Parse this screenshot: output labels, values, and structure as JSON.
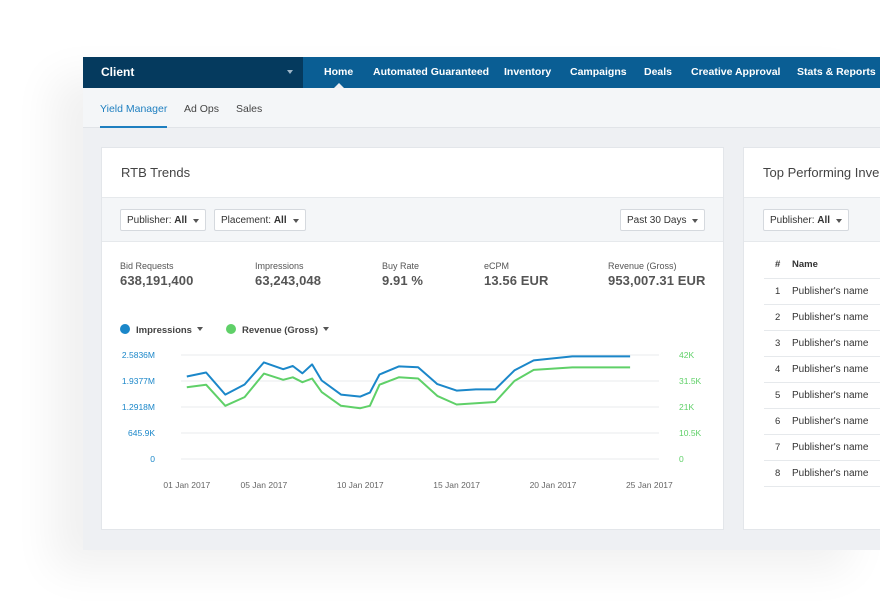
{
  "nav": {
    "client_label": "Client",
    "items": [
      "Home",
      "Automated Guaranteed",
      "Inventory",
      "Campaigns",
      "Deals",
      "Creative Approval",
      "Stats & Reports"
    ],
    "active": "Home"
  },
  "subnav": {
    "items": [
      "Yield Manager",
      "Ad Ops",
      "Sales"
    ],
    "active": "Yield Manager"
  },
  "rtb": {
    "title": "RTB Trends",
    "filters": {
      "publisher_label": "Publisher:",
      "publisher_value": "All",
      "placement_label": "Placement:",
      "placement_value": "All",
      "range": "Past 30 Days"
    },
    "kpis": [
      {
        "label": "Bid Requests",
        "value": "638,191,400"
      },
      {
        "label": "Impressions",
        "value": "63,243,048"
      },
      {
        "label": "Buy Rate",
        "value": "9.91 %"
      },
      {
        "label": "eCPM",
        "value": "13.56 EUR"
      },
      {
        "label": "Revenue (Gross)",
        "value": "953,007.31 EUR"
      }
    ],
    "legend": {
      "impressions": "Impressions",
      "revenue": "Revenue (Gross)"
    }
  },
  "colors": {
    "impressions": "#1b87c9",
    "revenue": "#5fd068",
    "nav": "#0a5e94",
    "client": "#053a5e",
    "accent": "#1e7fc0"
  },
  "chart_data": {
    "type": "line",
    "x_tick_labels": [
      "01 Jan 2017",
      "05 Jan 2017",
      "10 Jan 2017",
      "15 Jan 2017",
      "20 Jan 2017",
      "25 Jan 2017"
    ],
    "x_tick_positions": [
      1,
      5,
      10,
      15,
      20,
      25
    ],
    "y_left": {
      "ticks": [
        "0",
        "645.9K",
        "1.2918M",
        "1.9377M",
        "2.5836M"
      ],
      "ylim": [
        0,
        2583600
      ]
    },
    "y_right": {
      "ticks": [
        "0",
        "10.5K",
        "21K",
        "31.5K",
        "42K"
      ],
      "ylim": [
        0,
        42000
      ]
    },
    "x": [
      1,
      2,
      3,
      4,
      5,
      6,
      6.5,
      7,
      7.5,
      8,
      9,
      10,
      10.5,
      11,
      12,
      13,
      14,
      15,
      16,
      17,
      18,
      19,
      20,
      21,
      22,
      23,
      24
    ],
    "series": [
      {
        "name": "Impressions",
        "axis": "left",
        "values": [
          2050000,
          2150000,
          1600000,
          1850000,
          2400000,
          2230000,
          2310000,
          2130000,
          2350000,
          1950000,
          1600000,
          1550000,
          1650000,
          2100000,
          2300000,
          2280000,
          1860000,
          1700000,
          1730000,
          1730000,
          2200000,
          2450000,
          2500000,
          2550000,
          2550000,
          2550000,
          2550000
        ]
      },
      {
        "name": "Revenue (Gross)",
        "axis": "right",
        "values": [
          29000,
          30000,
          21500,
          25000,
          34500,
          32000,
          33000,
          31000,
          32500,
          27000,
          21500,
          20500,
          21500,
          30000,
          33000,
          32500,
          25500,
          22000,
          22500,
          23000,
          31500,
          36000,
          36500,
          37000,
          37000,
          37000,
          37000
        ]
      }
    ]
  },
  "top": {
    "title": "Top Performing Inve",
    "publisher_label": "Publisher:",
    "publisher_value": "All",
    "columns": [
      "#",
      "Name"
    ],
    "rows": [
      {
        "n": "1",
        "name": "Publisher's name"
      },
      {
        "n": "2",
        "name": "Publisher's name"
      },
      {
        "n": "3",
        "name": "Publisher's name"
      },
      {
        "n": "4",
        "name": "Publisher's name"
      },
      {
        "n": "5",
        "name": "Publisher's name"
      },
      {
        "n": "6",
        "name": "Publisher's name"
      },
      {
        "n": "7",
        "name": "Publisher's name"
      },
      {
        "n": "8",
        "name": "Publisher's name"
      }
    ]
  }
}
